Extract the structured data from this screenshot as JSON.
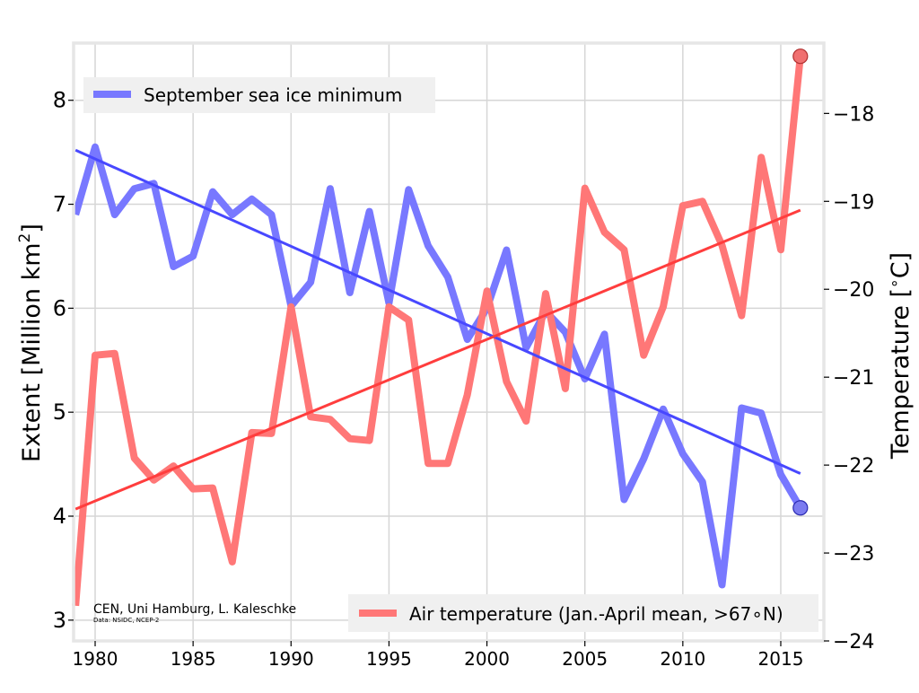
{
  "chart_data": {
    "type": "line",
    "xlim": [
      1978.9,
      2017.2
    ],
    "x_ticks": [
      1980,
      1985,
      1990,
      1995,
      2000,
      2005,
      2010,
      2015
    ],
    "left_axis": {
      "label": "Extent [Million km²]",
      "label_main": "Extent [Million km",
      "label_sup": "2",
      "label_end": "]",
      "ylim": [
        2.8,
        8.55
      ],
      "ticks": [
        3,
        4,
        5,
        6,
        7,
        8
      ],
      "tick_labels": [
        "3",
        "4",
        "5",
        "6",
        "7",
        "8"
      ]
    },
    "right_axis": {
      "label": "Temperature [°C]",
      "label_pre": "Temperature [",
      "label_deg": "∘",
      "label_post": "C]",
      "ylim": [
        -24,
        -17.2
      ],
      "ticks": [
        -24,
        -23,
        -22,
        -21,
        -20,
        -19,
        -18
      ],
      "tick_labels": [
        "−24",
        "−23",
        "−22",
        "−21",
        "−20",
        "−19",
        "−18"
      ]
    },
    "grid": true,
    "x": [
      1979,
      1980,
      1981,
      1982,
      1983,
      1984,
      1985,
      1986,
      1987,
      1988,
      1989,
      1990,
      1991,
      1992,
      1993,
      1994,
      1995,
      1996,
      1997,
      1998,
      1999,
      2000,
      2001,
      2002,
      2003,
      2004,
      2005,
      2006,
      2007,
      2008,
      2009,
      2010,
      2011,
      2012,
      2013,
      2014,
      2015,
      2016
    ],
    "series": [
      {
        "name": "September sea ice minimum",
        "axis": "left",
        "color": "#7878ff",
        "values": [
          6.9,
          7.55,
          6.9,
          7.15,
          7.2,
          6.4,
          6.5,
          7.12,
          6.9,
          7.05,
          6.9,
          6.02,
          6.25,
          7.15,
          6.15,
          6.93,
          6.05,
          7.14,
          6.6,
          6.3,
          5.7,
          6.0,
          6.56,
          5.62,
          5.97,
          5.77,
          5.32,
          5.75,
          4.16,
          4.55,
          5.03,
          4.6,
          4.33,
          3.34,
          5.04,
          4.99,
          4.4,
          4.08
        ]
      },
      {
        "name": "Air temperature (Jan.-April mean, >67∘N)",
        "axis": "right",
        "color": "#ff7777",
        "values": [
          -23.6,
          -20.75,
          -20.73,
          -21.92,
          -22.17,
          -22.01,
          -22.27,
          -22.26,
          -23.1,
          -21.63,
          -21.64,
          -20.2,
          -21.45,
          -21.48,
          -21.7,
          -21.72,
          -20.2,
          -20.35,
          -21.98,
          -21.98,
          -21.2,
          -20.02,
          -21.05,
          -21.5,
          -20.05,
          -21.13,
          -18.85,
          -19.35,
          -19.55,
          -20.75,
          -20.2,
          -19.05,
          -19.0,
          -19.5,
          -20.3,
          -18.5,
          -19.55,
          -17.35
        ]
      }
    ],
    "trends": [
      {
        "axis": "left",
        "color": "#4848ff",
        "x": [
          1979,
          2016
        ],
        "y": [
          7.52,
          4.41
        ]
      },
      {
        "axis": "right",
        "color": "#ff3d3d",
        "x": [
          1979,
          2016
        ],
        "y": [
          -22.5,
          -19.1
        ]
      }
    ],
    "end_markers": [
      {
        "axis": "left",
        "x": 2016,
        "y": 4.08,
        "color": "#7b7bf0"
      },
      {
        "axis": "right",
        "x": 2016,
        "y": -17.35,
        "color": "#f07070"
      }
    ],
    "legends": [
      {
        "label": "September sea ice minimum",
        "placement": "top-left",
        "color": "#7878ff"
      },
      {
        "label": "Air temperature (Jan.-April mean, >67∘N)",
        "placement": "bottom-right",
        "color": "#ff7777"
      }
    ],
    "annotations": {
      "credit": "CEN, Uni Hamburg, L. Kaleschke",
      "source": "Data: NSIDC, NCEP-2"
    }
  }
}
